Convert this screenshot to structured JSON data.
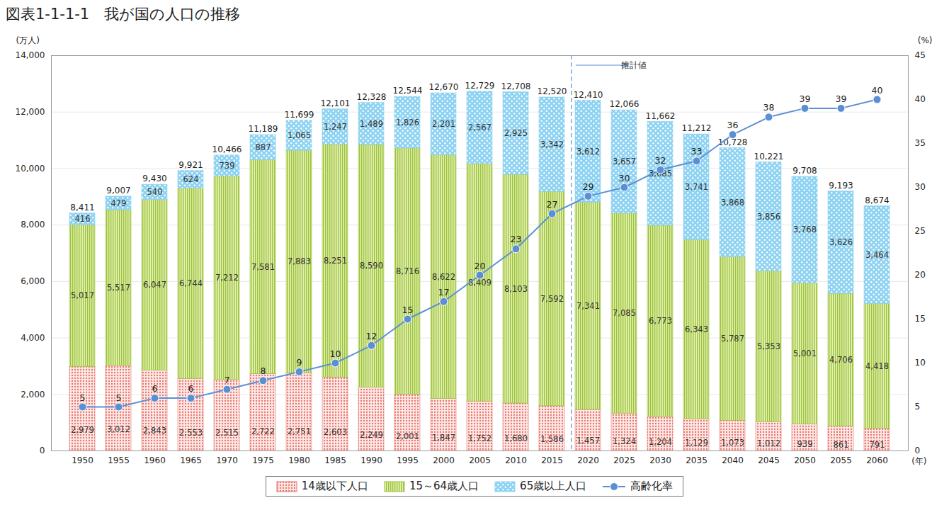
{
  "chart_data": {
    "type": "bar",
    "title": "図表1-1-1-1　我が国の人口の推移",
    "y_label": "(万人)",
    "y2_label": "(%)",
    "x_label": "(年)",
    "categories": [
      1950,
      1955,
      1960,
      1965,
      1970,
      1975,
      1980,
      1985,
      1990,
      1995,
      2000,
      2005,
      2010,
      2015,
      2020,
      2025,
      2030,
      2035,
      2040,
      2045,
      2050,
      2055,
      2060
    ],
    "series": [
      {
        "name": "14歳以下人口",
        "color": "#e8736c",
        "values": [
          2979,
          3012,
          2843,
          2553,
          2515,
          2722,
          2751,
          2603,
          2249,
          2001,
          1847,
          1752,
          1680,
          1586,
          1457,
          1324,
          1204,
          1129,
          1073,
          1012,
          939,
          861,
          791
        ],
        "value_labels": [
          "2,979",
          "3,012",
          "2,843",
          "2,553",
          "2,515",
          "2,722",
          "2,751",
          "2,603",
          "2,249",
          "2,001",
          "1,847",
          "1,752",
          "1,680",
          "1,586",
          "1,457",
          "1,324",
          "1,204",
          "1,129",
          "1,073",
          "1,012",
          "939",
          "861",
          "791"
        ]
      },
      {
        "name": "15～64歳人口",
        "color": "#9cc43c",
        "values": [
          5017,
          5517,
          6047,
          6744,
          7212,
          7581,
          7883,
          8251,
          8590,
          8716,
          8622,
          8409,
          8103,
          7592,
          7341,
          7085,
          6773,
          6343,
          5787,
          5353,
          5001,
          4706,
          4418
        ],
        "value_labels": [
          "5,017",
          "5,517",
          "6,047",
          "6,744",
          "7,212",
          "7,581",
          "7,883",
          "8,251",
          "8,590",
          "8,716",
          "8,622",
          "8,409",
          "8,103",
          "7,592",
          "7,341",
          "7,085",
          "6,773",
          "6,343",
          "5,787",
          "5,353",
          "5,001",
          "4,706",
          "4,418"
        ]
      },
      {
        "name": "65歳以上人口",
        "color": "#8fd3f2",
        "values": [
          416,
          479,
          540,
          624,
          739,
          887,
          1065,
          1247,
          1489,
          1826,
          2201,
          2567,
          2925,
          3342,
          3612,
          3657,
          3685,
          3741,
          3868,
          3856,
          3768,
          3626,
          3464
        ],
        "value_labels": [
          "416",
          "479",
          "540",
          "624",
          "739",
          "887",
          "1,065",
          "1,247",
          "1,489",
          "1,826",
          "2,201",
          "2,567",
          "2,925",
          "3,342",
          "3,612",
          "3,657",
          "3,685",
          "3,741",
          "3,868",
          "3,856",
          "3,768",
          "3,626",
          "3,464"
        ]
      },
      {
        "name": "高齢化率",
        "color": "#5b8fd4",
        "type": "line",
        "axis": "y2",
        "marker": "circle",
        "values": [
          5,
          5,
          6,
          6,
          7,
          8,
          9,
          10,
          12,
          15,
          17,
          20,
          23,
          27,
          29,
          30,
          32,
          33,
          36,
          38,
          39,
          39,
          40
        ]
      }
    ],
    "totals": {
      "values": [
        8411,
        9007,
        9430,
        9921,
        10466,
        11189,
        11699,
        12101,
        12328,
        12544,
        12670,
        12729,
        12708,
        12520,
        12410,
        12066,
        11662,
        11212,
        10728,
        10221,
        9708,
        9193,
        8674
      ],
      "value_labels": [
        "8,411",
        "9,007",
        "9,430",
        "9,921",
        "10,466",
        "11,189",
        "11,699",
        "12,101",
        "12,328",
        "12,544",
        "12,670",
        "12,729",
        "12,708",
        "12,520",
        "12,410",
        "12,066",
        "11,662",
        "11,212",
        "10,728",
        "10,221",
        "9,708",
        "9,193",
        "8,674"
      ]
    },
    "forecast": {
      "from": 2020,
      "label": "推計値"
    },
    "ylim": [
      0,
      14000
    ],
    "yticks": [
      0,
      {
        "value": 2000,
        "label": "2,000"
      },
      {
        "value": 4000,
        "label": "4,000"
      },
      {
        "value": 6000,
        "label": "6,000"
      },
      {
        "value": 8000,
        "label": "8,000"
      },
      {
        "value": 10000,
        "label": "10,000"
      },
      {
        "value": 12000,
        "label": "12,000"
      },
      {
        "value": 14000,
        "label": "14,000"
      }
    ],
    "y2lim": [
      0,
      45
    ],
    "y2ticks": [
      0,
      5,
      10,
      15,
      20,
      25,
      30,
      35,
      40,
      45
    ],
    "stacked": true,
    "data_labels": true,
    "grid": true,
    "legend": "bottom"
  }
}
